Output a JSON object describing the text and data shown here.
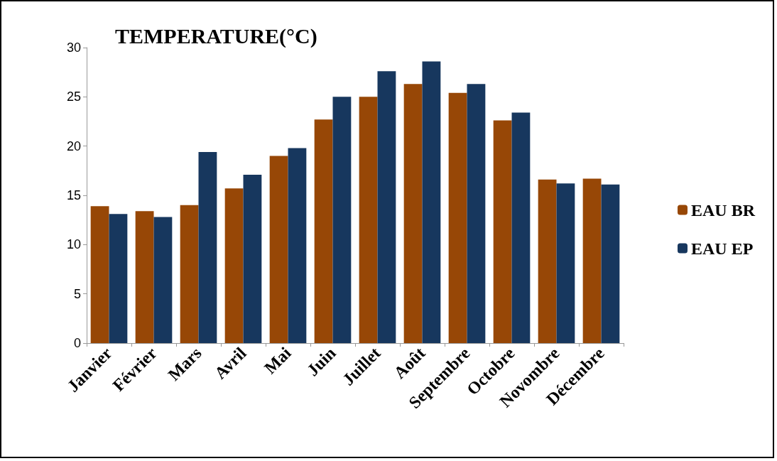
{
  "chart_data": {
    "type": "bar",
    "title": "TEMPERATURE(°C)",
    "categories": [
      "Janvier",
      "Février",
      "Mars",
      "Avril",
      "Mai",
      "Juin",
      "Juillet",
      "Août",
      "Septembre",
      "Octobre",
      "Novombre",
      "Décembre"
    ],
    "series": [
      {
        "name": "EAU BR",
        "color": "#974706",
        "values": [
          13.9,
          13.4,
          14.0,
          15.7,
          19.0,
          22.7,
          25.0,
          26.3,
          25.4,
          22.6,
          16.6,
          16.7
        ]
      },
      {
        "name": "EAU EP",
        "color": "#17375e",
        "values": [
          13.1,
          12.8,
          19.4,
          17.1,
          19.8,
          25.0,
          27.6,
          28.6,
          26.3,
          23.4,
          16.2,
          16.1
        ]
      }
    ],
    "ylim": [
      0,
      30
    ],
    "yticks": [
      0,
      5,
      10,
      15,
      20,
      25,
      30
    ],
    "grid": false,
    "legend": "right"
  }
}
